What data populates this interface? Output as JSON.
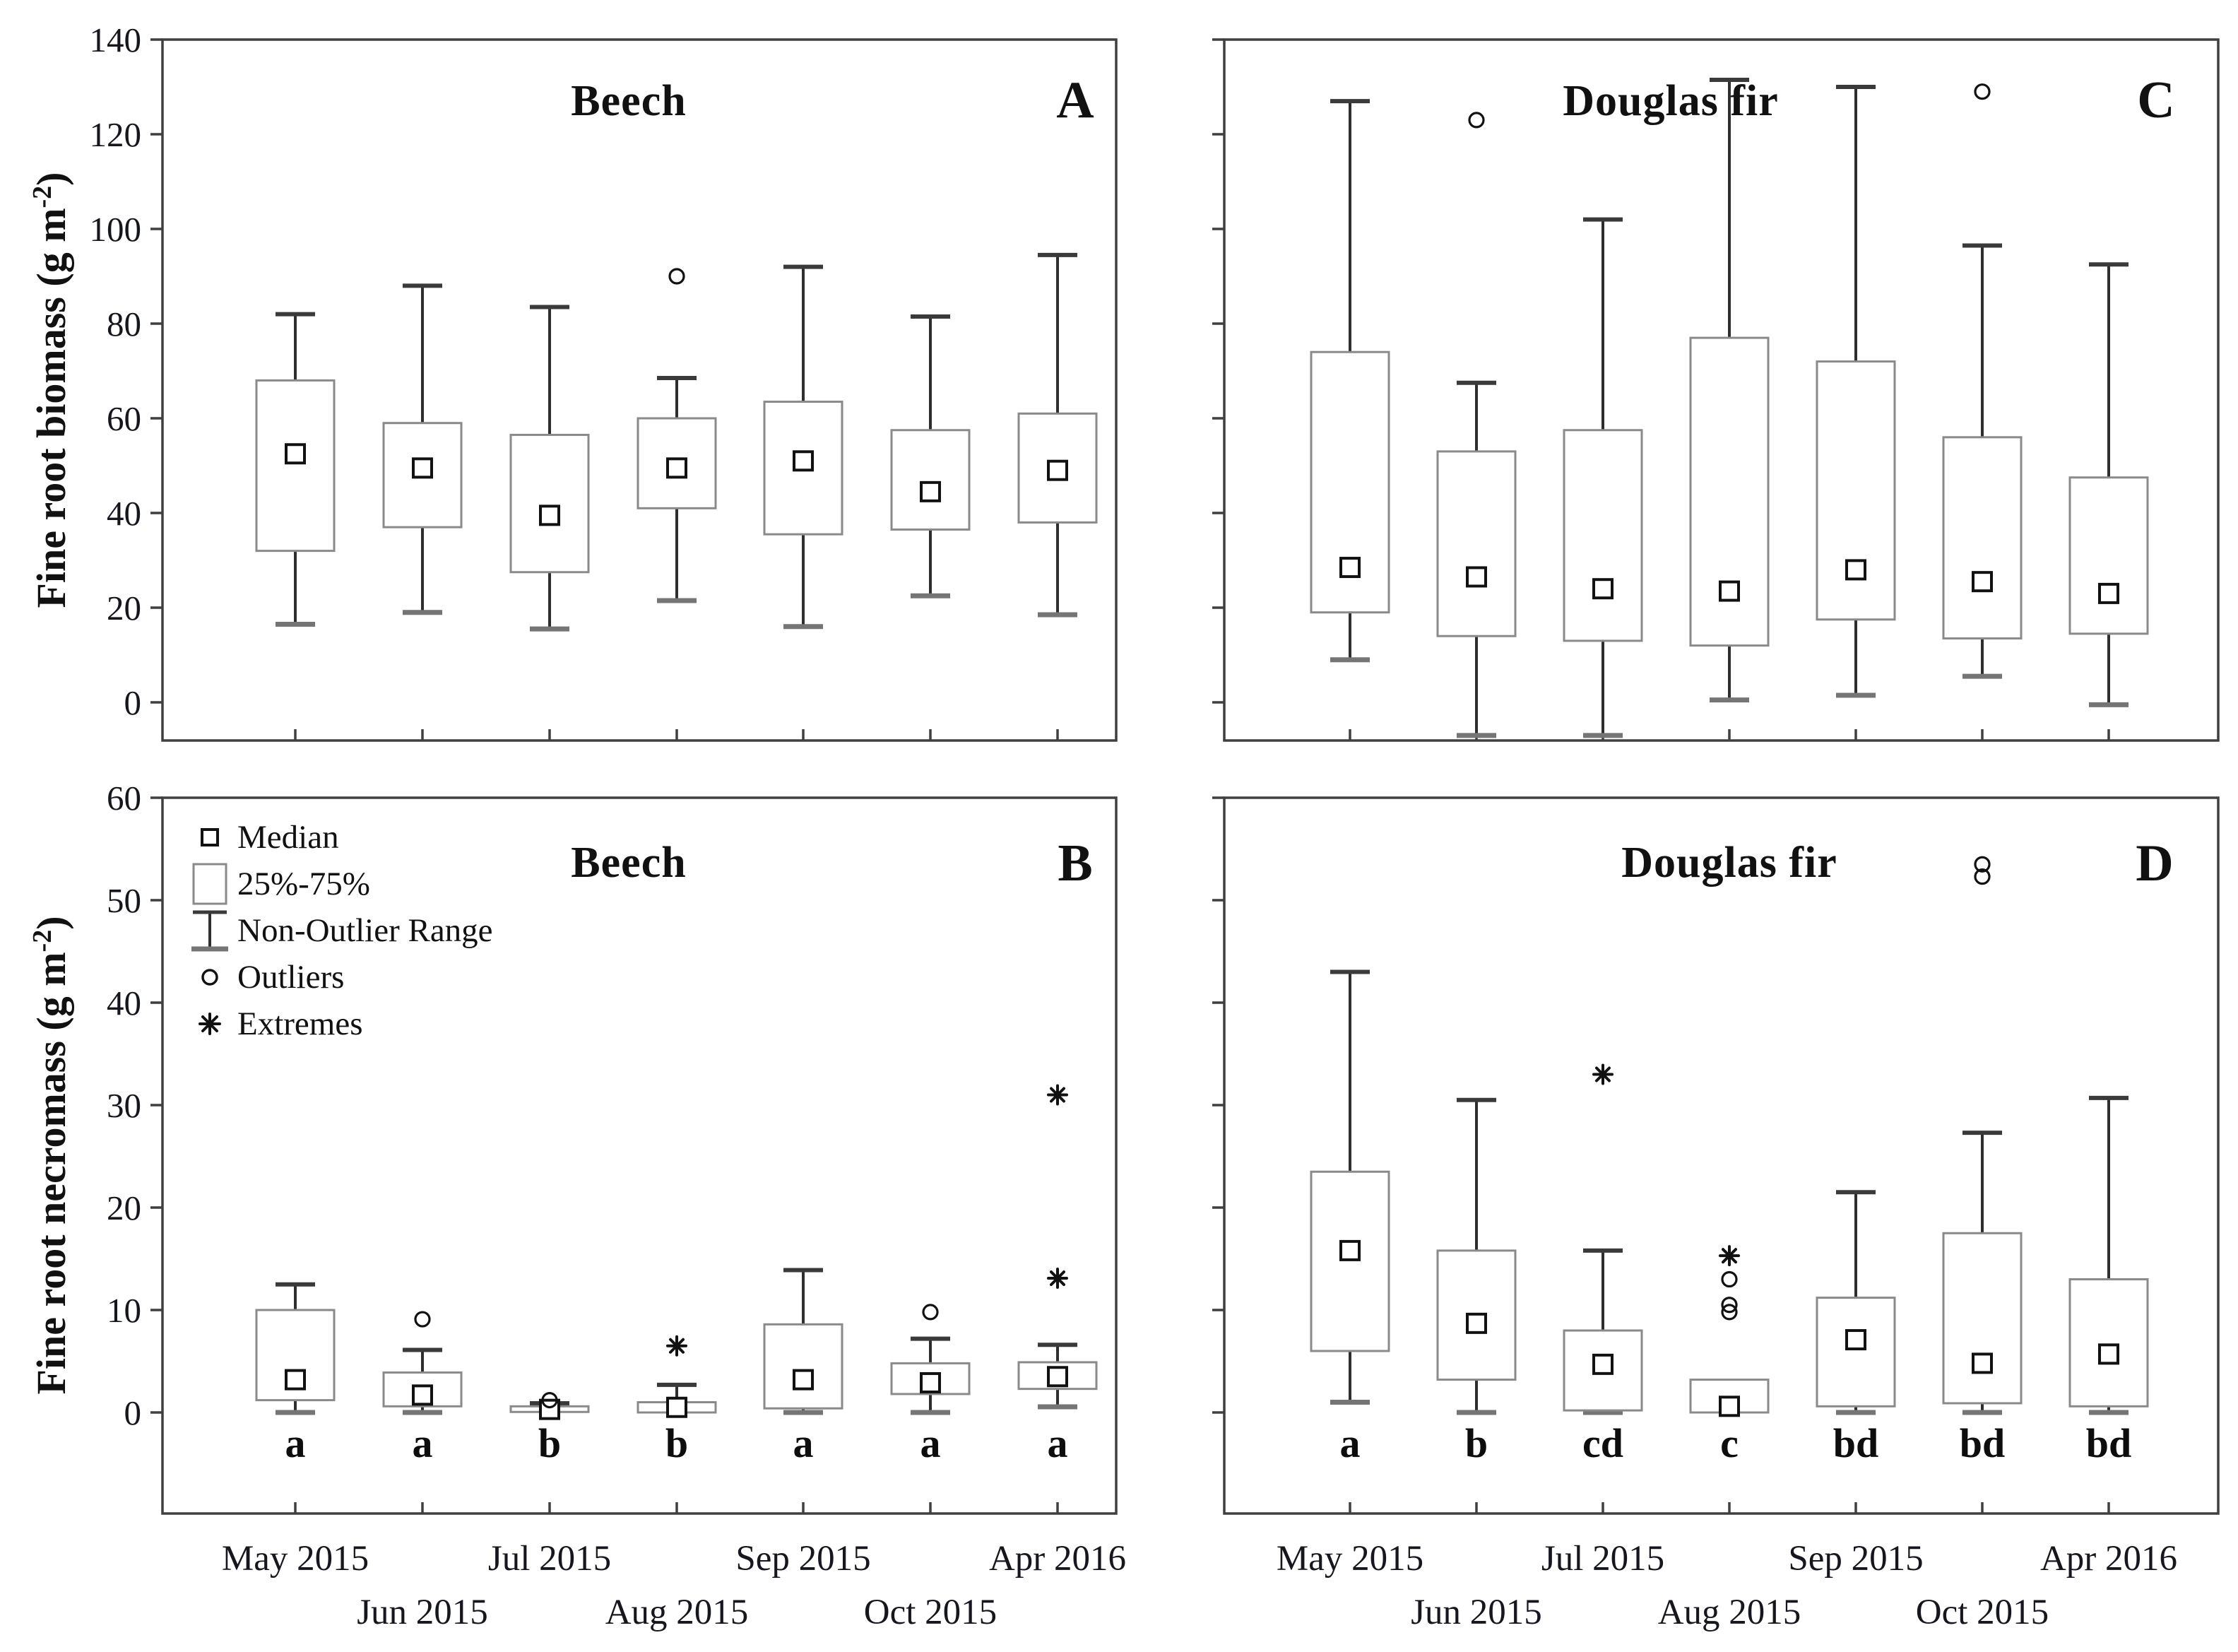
{
  "figure": {
    "background": "#ffffff",
    "ink": "#111111",
    "box_stroke": "#8a8a8a",
    "whisker_stroke": "#2e2e2e",
    "cap_top_color": "#3a3a3a",
    "cap_bottom_color": "#757575"
  },
  "axes": {
    "top_ylabel": {
      "prefix": "Fine root biomass (g m",
      "sup": "-2",
      "suffix": ")"
    },
    "bottom_ylabel": {
      "prefix": "Fine root necromass (g m",
      "sup": "-2",
      "suffix": ")"
    },
    "top_yticks": [
      0,
      20,
      40,
      60,
      80,
      100,
      120,
      140
    ],
    "bottom_yticks": [
      0,
      10,
      20,
      30,
      40,
      50,
      60
    ],
    "categories": [
      "May 2015",
      "Jun 2015",
      "Jul 2015",
      "Aug 2015",
      "Sep 2015",
      "Oct 2015",
      "Apr 2016"
    ]
  },
  "legend": {
    "items": [
      {
        "icon": "median-square-icon",
        "label": "Median"
      },
      {
        "icon": "iqr-box-icon",
        "label": "25%-75%"
      },
      {
        "icon": "non-outlier-range-icon",
        "label": "Non-Outlier Range"
      },
      {
        "icon": "outlier-circle-icon",
        "label": "Outliers"
      },
      {
        "icon": "extreme-asterisk-icon",
        "label": "Extremes"
      }
    ]
  },
  "chart_data": [
    {
      "id": "A",
      "type": "box",
      "species": "Beech",
      "panel_label": "A",
      "title": "Beech — Fine root biomass",
      "ylabel": "Fine root biomass (g m-2)",
      "ylim": [
        0,
        140
      ],
      "ytick_step": 20,
      "grid": false,
      "categories": [
        "May 2015",
        "Jun 2015",
        "Jul 2015",
        "Aug 2015",
        "Sep 2015",
        "Oct 2015",
        "Apr 2016"
      ],
      "boxes": [
        {
          "category": "May 2015",
          "low": 16.5,
          "q1": 32,
          "median": 52.5,
          "q3": 68,
          "high": 82,
          "outliers": [],
          "extremes": []
        },
        {
          "category": "Jun 2015",
          "low": 19,
          "q1": 37,
          "median": 49.5,
          "q3": 59,
          "high": 88,
          "outliers": [],
          "extremes": []
        },
        {
          "category": "Jul 2015",
          "low": 15.5,
          "q1": 27.5,
          "median": 39.5,
          "q3": 56.5,
          "high": 83.5,
          "outliers": [],
          "extremes": []
        },
        {
          "category": "Aug 2015",
          "low": 21.5,
          "q1": 41,
          "median": 49.5,
          "q3": 60,
          "high": 68.5,
          "outliers": [
            90
          ],
          "extremes": []
        },
        {
          "category": "Sep 2015",
          "low": 16,
          "q1": 35.5,
          "median": 51,
          "q3": 63.5,
          "high": 92,
          "outliers": [],
          "extremes": []
        },
        {
          "category": "Oct 2015",
          "low": 22.5,
          "q1": 36.5,
          "median": 44.5,
          "q3": 57.5,
          "high": 81.5,
          "outliers": [],
          "extremes": []
        },
        {
          "category": "Apr 2016",
          "low": 18.5,
          "q1": 38,
          "median": 49,
          "q3": 61,
          "high": 94.5,
          "outliers": [],
          "extremes": []
        }
      ]
    },
    {
      "id": "B",
      "type": "box",
      "species": "Beech",
      "panel_label": "B",
      "title": "Beech — Fine root necromass",
      "ylabel": "Fine root necromass (g m-2)",
      "ylim": [
        0,
        60
      ],
      "ytick_step": 10,
      "grid": false,
      "categories": [
        "May 2015",
        "Jun 2015",
        "Jul 2015",
        "Aug 2015",
        "Sep 2015",
        "Oct 2015",
        "Apr 2016"
      ],
      "boxes": [
        {
          "category": "May 2015",
          "low": 0,
          "q1": 1.2,
          "median": 3.2,
          "q3": 10,
          "high": 12.5,
          "outliers": [],
          "extremes": [],
          "letter": "a"
        },
        {
          "category": "Jun 2015",
          "low": 0,
          "q1": 0.6,
          "median": 1.7,
          "q3": 3.9,
          "high": 6.1,
          "outliers": [
            9.1
          ],
          "extremes": [],
          "letter": "a"
        },
        {
          "category": "Jul 2015",
          "low": 0,
          "q1": 0.05,
          "median": 0.3,
          "q3": 0.6,
          "high": 0.9,
          "outliers": [
            1.2
          ],
          "extremes": [],
          "letter": "b"
        },
        {
          "category": "Aug 2015",
          "low": 0,
          "q1": 0,
          "median": 0.5,
          "q3": 1.0,
          "high": 2.7,
          "outliers": [],
          "extremes": [
            6.5
          ],
          "letter": "b"
        },
        {
          "category": "Sep 2015",
          "low": 0,
          "q1": 0.4,
          "median": 3.2,
          "q3": 8.6,
          "high": 13.9,
          "outliers": [],
          "extremes": [],
          "letter": "a"
        },
        {
          "category": "Oct 2015",
          "low": 0,
          "q1": 1.8,
          "median": 2.9,
          "q3": 4.8,
          "high": 7.2,
          "outliers": [
            9.8
          ],
          "extremes": [],
          "letter": "a"
        },
        {
          "category": "Apr 2016",
          "low": 0.55,
          "q1": 2.3,
          "median": 3.5,
          "q3": 4.9,
          "high": 6.6,
          "outliers": [],
          "extremes": [
            13.1,
            31
          ],
          "letter": "a"
        }
      ]
    },
    {
      "id": "C",
      "type": "box",
      "species": "Douglas fir",
      "panel_label": "C",
      "title": "Douglas fir — Fine root biomass",
      "ylabel": "Fine root biomass (g m-2)",
      "ylim": [
        0,
        140
      ],
      "ytick_step": 20,
      "grid": false,
      "categories": [
        "May 2015",
        "Jun 2015",
        "Jul 2015",
        "Aug 2015",
        "Sep 2015",
        "Oct 2015",
        "Apr 2016"
      ],
      "boxes": [
        {
          "category": "May 2015",
          "low": 9,
          "q1": 19,
          "median": 28.5,
          "q3": 74,
          "high": 127,
          "outliers": [],
          "extremes": []
        },
        {
          "category": "Jun 2015",
          "low": -7,
          "q1": 14,
          "median": 26.5,
          "q3": 53,
          "high": 67.5,
          "outliers": [
            123
          ],
          "extremes": []
        },
        {
          "category": "Jul 2015",
          "low": -7,
          "q1": 13,
          "median": 24,
          "q3": 57.5,
          "high": 102,
          "outliers": [],
          "extremes": []
        },
        {
          "category": "Aug 2015",
          "low": 0.5,
          "q1": 12,
          "median": 23.5,
          "q3": 77,
          "high": 131.5,
          "outliers": [],
          "extremes": []
        },
        {
          "category": "Sep 2015",
          "low": 1.5,
          "q1": 17.5,
          "median": 28,
          "q3": 72,
          "high": 130,
          "outliers": [],
          "extremes": []
        },
        {
          "category": "Oct 2015",
          "low": 5.5,
          "q1": 13.5,
          "median": 25.5,
          "q3": 56,
          "high": 96.5,
          "outliers": [
            129
          ],
          "extremes": []
        },
        {
          "category": "Apr 2016",
          "low": -0.5,
          "q1": 14.5,
          "median": 23,
          "q3": 47.5,
          "high": 92.5,
          "outliers": [],
          "extremes": []
        }
      ]
    },
    {
      "id": "D",
      "type": "box",
      "species": "Douglas fir",
      "panel_label": "D",
      "title": "Douglas fir — Fine root necromass",
      "ylabel": "Fine root necromass (g m-2)",
      "ylim": [
        0,
        60
      ],
      "ytick_step": 10,
      "grid": false,
      "categories": [
        "May 2015",
        "Jun 2015",
        "Jul 2015",
        "Aug 2015",
        "Sep 2015",
        "Oct 2015",
        "Apr 2016"
      ],
      "boxes": [
        {
          "category": "May 2015",
          "low": 1,
          "q1": 6,
          "median": 15.8,
          "q3": 23.5,
          "high": 43,
          "outliers": [],
          "extremes": [],
          "letter": "a"
        },
        {
          "category": "Jun 2015",
          "low": 0,
          "q1": 3.2,
          "median": 8.7,
          "q3": 15.8,
          "high": 30.5,
          "outliers": [],
          "extremes": [],
          "letter": "b"
        },
        {
          "category": "Jul 2015",
          "low": 0,
          "q1": 0.2,
          "median": 4.7,
          "q3": 8,
          "high": 15.8,
          "outliers": [],
          "extremes": [
            33
          ],
          "letter": "cd"
        },
        {
          "category": "Aug 2015",
          "low": 0,
          "q1": 0,
          "median": 0.6,
          "q3": 3.2,
          "high": 3.2,
          "outliers": [
            13,
            10.5,
            9.8
          ],
          "extremes": [
            15.3
          ],
          "letter": "c"
        },
        {
          "category": "Sep 2015",
          "low": 0,
          "q1": 0.6,
          "median": 7.1,
          "q3": 11.2,
          "high": 21.5,
          "outliers": [],
          "extremes": [],
          "letter": "bd"
        },
        {
          "category": "Oct 2015",
          "low": 0,
          "q1": 0.9,
          "median": 4.8,
          "q3": 17.5,
          "high": 27.3,
          "outliers": [
            53.5,
            52.3
          ],
          "extremes": [],
          "letter": "bd"
        },
        {
          "category": "Apr 2016",
          "low": 0,
          "q1": 0.6,
          "median": 5.7,
          "q3": 13,
          "high": 30.7,
          "outliers": [],
          "extremes": [],
          "letter": "bd"
        }
      ]
    }
  ]
}
